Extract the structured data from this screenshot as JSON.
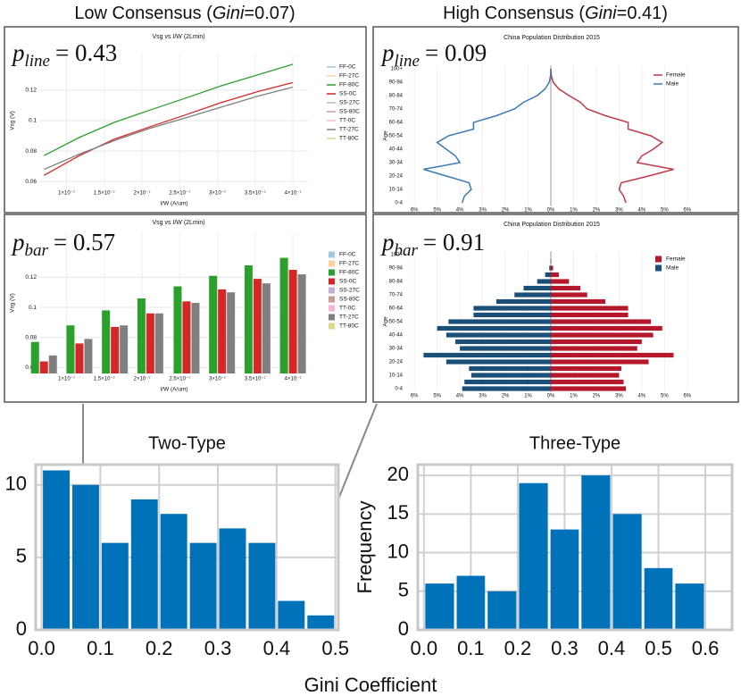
{
  "headers": [
    {
      "before": "Low Consensus (",
      "italic": "Gini",
      "after": "=0.07)"
    },
    {
      "before": "High Consensus (",
      "italic": "Gini",
      "after": "=0.41)"
    }
  ],
  "shared_xlabel": "Gini Coefficient",
  "chart_data": [
    {
      "type": "histogram",
      "title": "Two-Type",
      "color": "#0072b9",
      "bins": [
        0,
        0.05,
        0.1,
        0.15,
        0.2,
        0.25,
        0.3,
        0.35,
        0.4,
        0.45,
        0.5
      ],
      "values": [
        11,
        10,
        6,
        9,
        8,
        6,
        7,
        6,
        2,
        1
      ],
      "xlim": [
        -0.01,
        0.505
      ],
      "xticks": [
        {
          "value": 0,
          "label": "0.0"
        },
        0.1,
        0.2,
        0.3,
        0.4,
        0.5
      ],
      "ylim": [
        0,
        11.4
      ],
      "yticks": [
        0,
        5,
        10
      ],
      "grid": true
    },
    {
      "type": "histogram",
      "title": "Three-Type",
      "ylabel": "Frequency",
      "color": "#0072b9",
      "bins": [
        0,
        0.067,
        0.133,
        0.2,
        0.267,
        0.333,
        0.4,
        0.467,
        0.533,
        0.6
      ],
      "values": [
        6,
        7,
        5,
        19,
        13,
        20,
        15,
        8,
        6
      ],
      "xlim": [
        -0.013,
        0.657
      ],
      "xticks": [
        {
          "value": 0,
          "label": "0.0"
        },
        0.1,
        0.2,
        0.3,
        0.4,
        0.5,
        0.6
      ],
      "ylim": [
        0,
        21.4
      ],
      "yticks": [
        0,
        5,
        10,
        15,
        20
      ],
      "grid": true
    },
    {
      "type": "line",
      "title": "Vsg vs I/W (2Lmin)",
      "xlabel": "I/W (A/um)",
      "ylabel": "Vsg (V)",
      "annotation": {
        "symbol": "p",
        "subscript": "line",
        "text": "= 0.43"
      },
      "x": [
        7e-08,
        1.17e-07,
        1.64e-07,
        2.11e-07,
        2.59e-07,
        3.06e-07,
        3.53e-07,
        4e-07
      ],
      "series": [
        {
          "name": "FF-0C",
          "color": "#9ecae1",
          "values": [
            null,
            null,
            null,
            null,
            null,
            null,
            null,
            null
          ]
        },
        {
          "name": "FF-27C",
          "color": "#fdd0a2",
          "values": [
            null,
            null,
            null,
            null,
            null,
            null,
            null,
            null
          ]
        },
        {
          "name": "FF-80C",
          "color": "#2ca02c",
          "values": [
            0.077,
            0.089,
            0.099,
            0.107,
            0.115,
            0.123,
            0.13,
            0.137
          ]
        },
        {
          "name": "SS-0C",
          "color": "#d62728",
          "values": [
            0.064,
            0.077,
            0.088,
            0.096,
            0.104,
            0.112,
            0.119,
            0.125
          ]
        },
        {
          "name": "SS-27C",
          "color": "#c5b0d5",
          "values": [
            null,
            null,
            null,
            null,
            null,
            null,
            null,
            null
          ]
        },
        {
          "name": "SS-80C",
          "color": "#c49c94",
          "values": [
            null,
            null,
            null,
            null,
            null,
            null,
            null,
            null
          ]
        },
        {
          "name": "TT-0C",
          "color": "#f7b6d2",
          "values": [
            null,
            null,
            null,
            null,
            null,
            null,
            null,
            null
          ]
        },
        {
          "name": "TT-27C",
          "color": "#7f7f7f",
          "values": [
            0.068,
            0.078,
            0.087,
            0.095,
            0.102,
            0.109,
            0.116,
            0.122
          ]
        },
        {
          "name": "TT-80C",
          "color": "#dbdb8d",
          "values": [
            null,
            null,
            null,
            null,
            null,
            null,
            null,
            null
          ]
        }
      ],
      "xlim": [
        6.5e-08,
        4.2e-07
      ],
      "xticks": [
        {
          "value": 1e-07,
          "label": "1×10⁻⁷"
        },
        {
          "value": 1.5e-07,
          "label": "1.5×10⁻⁷"
        },
        {
          "value": 2e-07,
          "label": "2×10⁻⁷"
        },
        {
          "value": 2.5e-07,
          "label": "2.5×10⁻⁷"
        },
        {
          "value": 3e-07,
          "label": "3×10⁻⁷"
        },
        {
          "value": 3.5e-07,
          "label": "3.5×10⁻⁷"
        },
        {
          "value": 4e-07,
          "label": "4×10⁻⁷"
        }
      ],
      "ylim": [
        0.056,
        0.144
      ],
      "yticks": [
        0.06,
        0.08,
        0.1,
        0.12
      ],
      "grid": true
    },
    {
      "type": "bar",
      "title": "Vsg vs I/W (2Lmin)",
      "xlabel": "I/W (A/um)",
      "ylabel": "Vsg (V)",
      "annotation": {
        "symbol": "p",
        "subscript": "bar",
        "text": "= 0.57"
      },
      "x": [
        7e-08,
        1.17e-07,
        1.64e-07,
        2.11e-07,
        2.59e-07,
        3.06e-07,
        3.53e-07,
        4e-07
      ],
      "series": [
        {
          "name": "FF-0C",
          "color": "#9ecae1",
          "values": [
            null,
            null,
            null,
            null,
            null,
            null,
            null,
            null
          ]
        },
        {
          "name": "FF-27C",
          "color": "#fdd0a2",
          "values": [
            null,
            null,
            null,
            null,
            null,
            null,
            null,
            null
          ]
        },
        {
          "name": "FF-80C",
          "color": "#2ca02c",
          "values": [
            0.077,
            0.088,
            0.098,
            0.106,
            0.114,
            0.121,
            0.128,
            0.133
          ]
        },
        {
          "name": "SS-0C",
          "color": "#d62728",
          "values": [
            0.064,
            0.076,
            0.087,
            0.096,
            0.104,
            0.112,
            0.119,
            0.125
          ]
        },
        {
          "name": "SS-27C",
          "color": "#c5b0d5",
          "values": [
            null,
            null,
            null,
            null,
            null,
            null,
            null,
            null
          ]
        },
        {
          "name": "SS-80C",
          "color": "#c49c94",
          "values": [
            null,
            null,
            null,
            null,
            null,
            null,
            null,
            null
          ]
        },
        {
          "name": "TT-0C",
          "color": "#f7b6d2",
          "values": [
            null,
            null,
            null,
            null,
            null,
            null,
            null,
            null
          ]
        },
        {
          "name": "TT-27C",
          "color": "#7f7f7f",
          "values": [
            0.068,
            0.079,
            0.088,
            0.096,
            0.103,
            0.11,
            0.116,
            0.122
          ]
        },
        {
          "name": "TT-80C",
          "color": "#dbdb8d",
          "values": [
            null,
            null,
            null,
            null,
            null,
            null,
            null,
            null
          ]
        }
      ],
      "xlim": [
        6.5e-08,
        4.2e-07
      ],
      "xticks": [
        {
          "value": 1e-07,
          "label": "1×10⁻⁷"
        },
        {
          "value": 1.5e-07,
          "label": "1.5×10⁻⁷"
        },
        {
          "value": 2e-07,
          "label": "2×10⁻⁷"
        },
        {
          "value": 2.5e-07,
          "label": "2.5×10⁻⁷"
        },
        {
          "value": 3e-07,
          "label": "3×10⁻⁷"
        },
        {
          "value": 3.5e-07,
          "label": "3.5×10⁻⁷"
        },
        {
          "value": 4e-07,
          "label": "4×10⁻⁷"
        }
      ],
      "ylim": [
        0.056,
        0.15
      ],
      "yticks": [
        0.06,
        0.08,
        0.1,
        0.12
      ],
      "grid": true
    },
    {
      "type": "line",
      "orientation": "horizontal",
      "title": "China Population Distribution 2015",
      "ylabel": "Age",
      "annotation": {
        "symbol": "p",
        "subscript": "line",
        "text": "= 0.09"
      },
      "categories": [
        "0-4",
        null,
        "10-14",
        null,
        "20-24",
        null,
        "30-34",
        null,
        "40-44",
        null,
        "50-54",
        null,
        "60-64",
        null,
        "70-74",
        null,
        "80-84",
        null,
        "90-94",
        null,
        "100+"
      ],
      "series": [
        {
          "name": "Female",
          "color": "#c0394a",
          "values": [
            3.3,
            3.2,
            3.0,
            3.1,
            4.3,
            5.4,
            3.8,
            4.0,
            4.5,
            4.9,
            4.4,
            3.4,
            3.4,
            2.4,
            1.6,
            1.3,
            0.8,
            0.35,
            0.1,
            0.02,
            0.0
          ]
        },
        {
          "name": "Male",
          "color": "#3b7ab5",
          "values": [
            -3.9,
            -3.8,
            -3.5,
            -3.6,
            -4.6,
            -5.6,
            -4.0,
            -4.2,
            -4.6,
            -5.0,
            -4.5,
            -3.4,
            -3.4,
            -2.4,
            -1.6,
            -1.2,
            -0.6,
            -0.25,
            -0.07,
            -0.01,
            0.0
          ]
        }
      ],
      "xlim": [
        -6.4,
        6.4
      ],
      "xticks": [
        {
          "value": -6,
          "label": "6%"
        },
        {
          "value": -5,
          "label": "5%"
        },
        {
          "value": -4,
          "label": "4%"
        },
        {
          "value": -3,
          "label": "3%"
        },
        {
          "value": -2,
          "label": "2%"
        },
        {
          "value": -1,
          "label": "1%"
        },
        {
          "value": 0,
          "label": "0%"
        },
        {
          "value": 1,
          "label": "1%"
        },
        {
          "value": 2,
          "label": "2%"
        },
        {
          "value": 3,
          "label": "3%"
        },
        {
          "value": 4,
          "label": "4%"
        },
        {
          "value": 5,
          "label": "5%"
        },
        {
          "value": 6,
          "label": "6%"
        }
      ]
    },
    {
      "type": "bar",
      "orientation": "horizontal",
      "title": "China Population Distribution 2015",
      "ylabel": "Age",
      "annotation": {
        "symbol": "p",
        "subscript": "bar",
        "text": "= 0.91"
      },
      "categories": [
        "0-4",
        null,
        "10-14",
        null,
        "20-24",
        null,
        "30-34",
        null,
        "40-44",
        null,
        "50-54",
        null,
        "60-64",
        null,
        "70-74",
        null,
        "80-84",
        null,
        "90-94",
        null,
        "100+"
      ],
      "series": [
        {
          "name": "Female",
          "color": "#b5182b",
          "values": [
            3.3,
            3.2,
            3.0,
            3.1,
            4.3,
            5.4,
            3.8,
            4.0,
            4.5,
            4.9,
            4.4,
            3.4,
            3.4,
            2.4,
            1.6,
            1.3,
            0.8,
            0.35,
            0.1,
            0.02,
            0.0
          ]
        },
        {
          "name": "Male",
          "color": "#1a4f7a",
          "values": [
            -3.9,
            -3.8,
            -3.5,
            -3.6,
            -4.6,
            -5.6,
            -4.0,
            -4.2,
            -4.6,
            -5.0,
            -4.5,
            -3.4,
            -3.4,
            -2.4,
            -1.6,
            -1.2,
            -0.6,
            -0.25,
            -0.07,
            -0.01,
            0.0
          ]
        }
      ],
      "xlim": [
        -6.4,
        6.4
      ],
      "xticks": [
        {
          "value": -6,
          "label": "6%"
        },
        {
          "value": -5,
          "label": "5%"
        },
        {
          "value": -4,
          "label": "4%"
        },
        {
          "value": -3,
          "label": "3%"
        },
        {
          "value": -2,
          "label": "2%"
        },
        {
          "value": -1,
          "label": "1%"
        },
        {
          "value": 0,
          "label": "0%"
        },
        {
          "value": 1,
          "label": "1%"
        },
        {
          "value": 2,
          "label": "2%"
        },
        {
          "value": 3,
          "label": "3%"
        },
        {
          "value": 4,
          "label": "4%"
        },
        {
          "value": 5,
          "label": "5%"
        },
        {
          "value": 6,
          "label": "6%"
        }
      ]
    }
  ]
}
